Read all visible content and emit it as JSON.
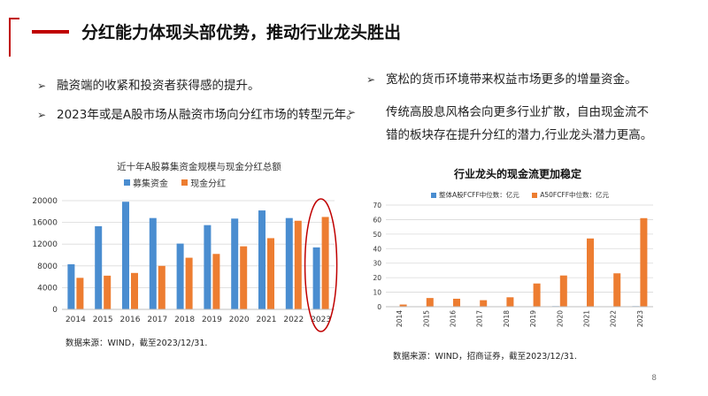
{
  "slide": {
    "title": "分红能力体现头部优势，推动行业龙头胜出",
    "page_number": "8",
    "accent_color": "#c00000"
  },
  "left_bullets": [
    {
      "marker": "➢",
      "text": "融资端的收紧和投资者获得感的提升。"
    },
    {
      "marker": "➢",
      "text": "2023年或是A股市场从融资市场向分红市场的转型元年。"
    }
  ],
  "right_bullets": [
    {
      "marker": "➢",
      "text": "宽松的货币环境带来权益市场更多的增量资金。"
    },
    {
      "marker": "➢",
      "text": "传统高股息风格会向更多行业扩散，自由现金流不错的板块存在提升分红的潜力,行业龙头潜力更高。"
    }
  ],
  "chart_data": [
    {
      "type": "bar",
      "title": "近十年A股募集资金规模与现金分红总额",
      "categories": [
        "2014",
        "2015",
        "2016",
        "2017",
        "2018",
        "2019",
        "2020",
        "2021",
        "2022",
        "2023"
      ],
      "series": [
        {
          "name": "募集资金",
          "color": "#4a8dd0",
          "values": [
            8300,
            15300,
            19800,
            16800,
            12100,
            15500,
            16700,
            18200,
            16800,
            11400
          ]
        },
        {
          "name": "现金分红",
          "color": "#ed7d31",
          "values": [
            5800,
            6200,
            6700,
            8000,
            9500,
            10200,
            11600,
            13100,
            16300,
            17000
          ]
        }
      ],
      "y_ticks": [
        "0",
        "4000",
        "8000",
        "12000",
        "16000",
        "20000"
      ],
      "ylim": [
        0,
        20000
      ],
      "legend": "top",
      "highlight": "2023",
      "source": "数据来源：WIND，截至2023/12/31."
    },
    {
      "type": "bar",
      "title": "行业龙头的现金流更加稳定",
      "categories": [
        "2014",
        "2015",
        "2016",
        "2017",
        "2018",
        "2019",
        "2020",
        "2021",
        "2022",
        "2023"
      ],
      "series": [
        {
          "name": "整体A股FCFF中位数：亿元",
          "color": "#4a8dd0",
          "values": [
            0.2,
            0.2,
            0.2,
            0.2,
            0.3,
            0.3,
            0.4,
            0.3,
            0.3,
            0.4
          ]
        },
        {
          "name": "A50FCFF中位数：亿元",
          "color": "#ed7d31",
          "values": [
            1.5,
            6.0,
            5.5,
            4.5,
            6.5,
            16.0,
            21.5,
            47.0,
            23.0,
            61.0
          ]
        }
      ],
      "y_ticks": [
        "0",
        "10",
        "20",
        "30",
        "40",
        "50",
        "60",
        "70"
      ],
      "ylim": [
        0,
        70
      ],
      "legend": "top",
      "source": "数据来源：WIND，招商证券，截至2023/12/31."
    }
  ]
}
